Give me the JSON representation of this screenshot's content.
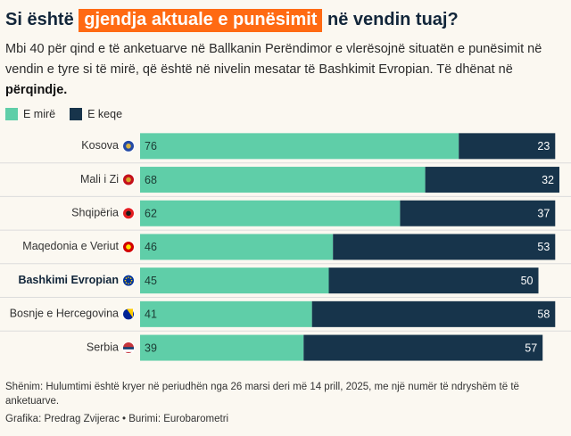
{
  "header": {
    "title_before": "Si është",
    "title_highlight": "gjendja aktuale e punësimit",
    "title_after": "në vendin tuaj?",
    "subtitle_main": "Mbi 40 për qind e të anketuarve në Ballkanin Perëndimor e vlerësojnë situatën e punësimit në vendin e tyre si të mirë, që është në nivelin mesatar të Bashkimit Evropian. Të dhënat në",
    "subtitle_bold": "përqindje."
  },
  "colors": {
    "good": "#5fcea8",
    "bad": "#17344b",
    "highlight": "#ff6a13",
    "gridline": "#dcdcdc"
  },
  "legend": [
    {
      "label": "E mirë",
      "color": "#5fcea8"
    },
    {
      "label": "E keqe",
      "color": "#17344b"
    }
  ],
  "chart_data": {
    "type": "bar",
    "orientation": "horizontal",
    "stacked": true,
    "categories": [
      "Kosova",
      "Mali i Zi",
      "Shqipëria",
      "Maqedonia e Veriut",
      "Bashkimi Evropian",
      "Bosnje e Hercegovina",
      "Serbia"
    ],
    "bold_category": "Bashkimi Evropian",
    "flag_icons": [
      "kosovo-flag-icon",
      "montenegro-flag-icon",
      "albania-flag-icon",
      "north-macedonia-flag-icon",
      "eu-flag-icon",
      "bosnia-flag-icon",
      "serbia-flag-icon"
    ],
    "series": [
      {
        "name": "E mirë",
        "values": [
          76,
          68,
          62,
          46,
          45,
          41,
          39
        ]
      },
      {
        "name": "E keqe",
        "values": [
          23,
          32,
          37,
          53,
          50,
          58,
          57
        ]
      }
    ],
    "xlim": [
      0,
      100
    ],
    "xlabel": "",
    "ylabel": "",
    "grid": false,
    "legend_position": "top-left"
  },
  "footer": {
    "note": "Shënim: Hulumtimi është kryer në periudhën nga 26 marsi deri më 14 prill, 2025, me një numër të ndryshëm të të anketuarve.",
    "credit": "Grafika: Predrag Zvijerac • Burimi: Eurobarometri"
  }
}
